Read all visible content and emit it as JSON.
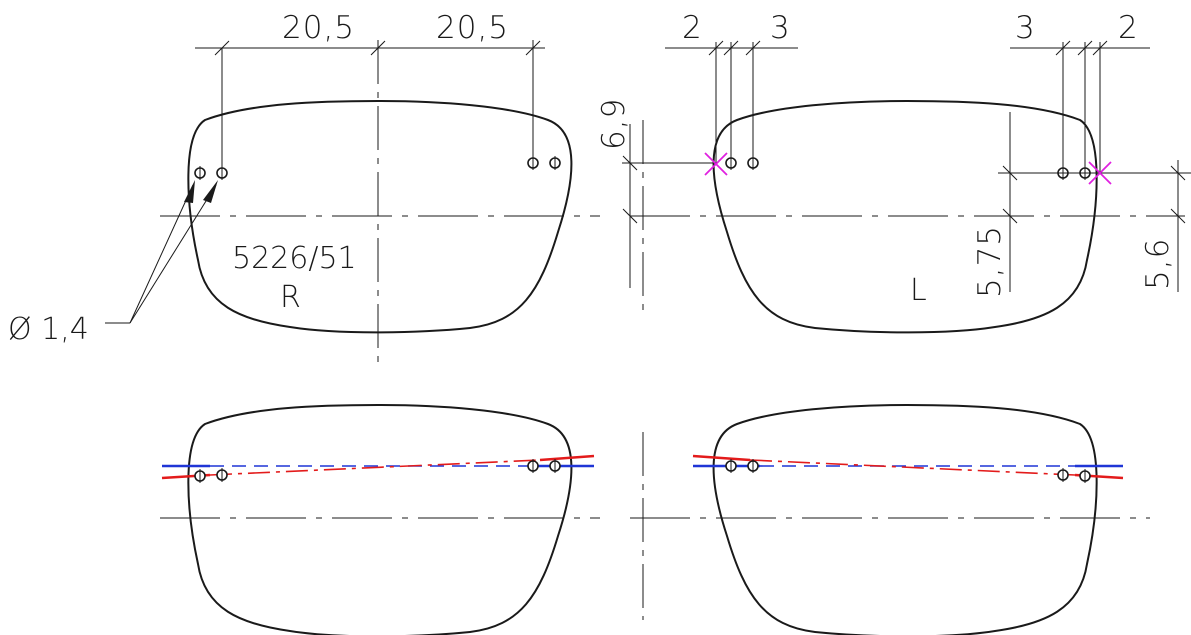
{
  "drawing": {
    "dims_top_right_lens": [
      "20,5",
      "20,5"
    ],
    "dims_top_left_lens": [
      "2",
      "3",
      "3",
      "2"
    ],
    "dim_height_left": "6,9",
    "dim_height_mid": "5,75",
    "dim_height_right": "5,6",
    "diameter_label": "Ø 1,4",
    "model_number": "5226/51",
    "right_lens_label": "R",
    "left_lens_label": "L"
  },
  "colors": {
    "outline": "#1a1a1a",
    "reference_line": "#1f35d6",
    "tilted_line": "#e31b1b",
    "reference_point": "#e020e0"
  }
}
